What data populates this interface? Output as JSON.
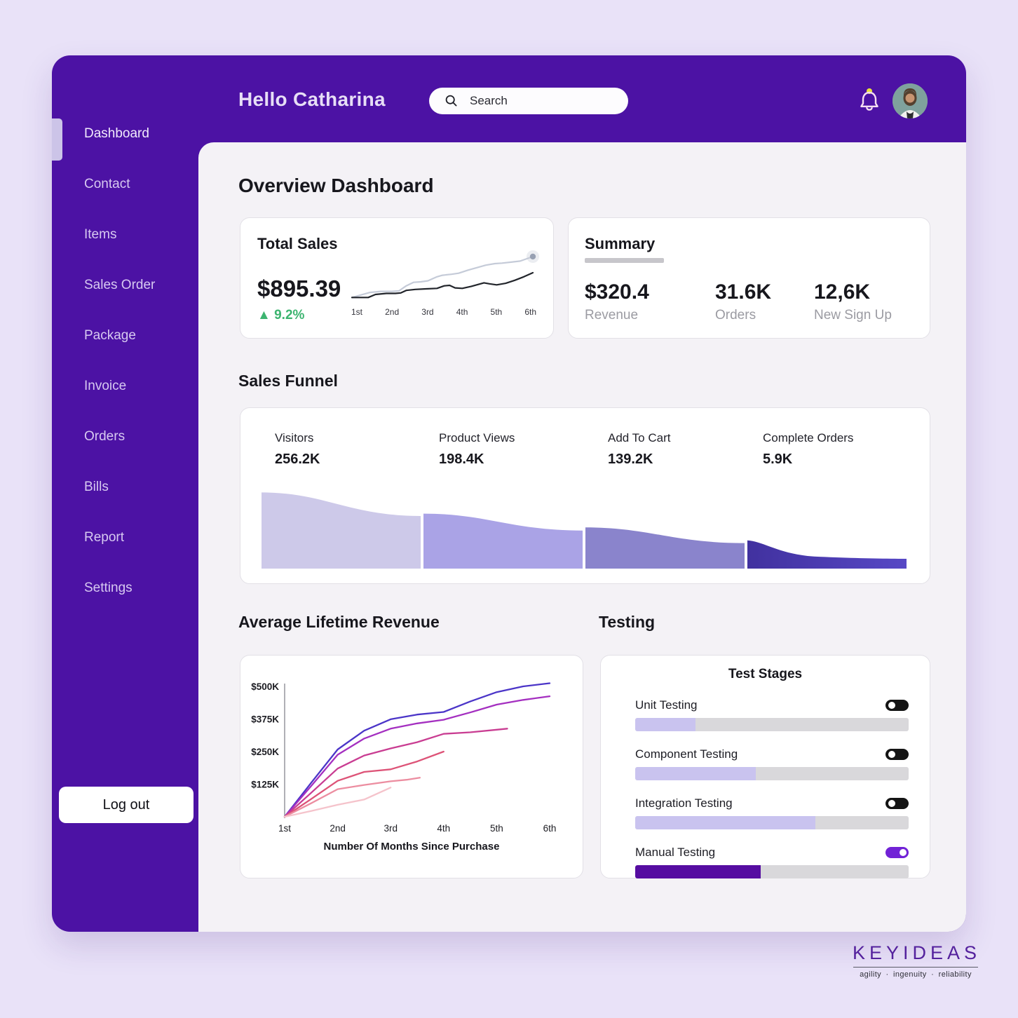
{
  "header": {
    "greeting": "Hello Catharina",
    "search_placeholder": "Search"
  },
  "sidebar": {
    "items": [
      {
        "label": "Dashboard",
        "active": true
      },
      {
        "label": "Contact",
        "active": false
      },
      {
        "label": "Items",
        "active": false
      },
      {
        "label": "Sales Order",
        "active": false
      },
      {
        "label": "Package",
        "active": false
      },
      {
        "label": "Invoice",
        "active": false
      },
      {
        "label": "Orders",
        "active": false
      },
      {
        "label": "Bills",
        "active": false
      },
      {
        "label": "Report",
        "active": false
      },
      {
        "label": "Settings",
        "active": false
      }
    ],
    "logout_label": "Log out"
  },
  "page_title": "Overview Dashboard",
  "total_sales": {
    "title": "Total Sales",
    "value": "$895.39",
    "change_arrow": "▲",
    "change": "9.2%",
    "change_color": "#3db470"
  },
  "summary": {
    "title": "Summary",
    "stats": [
      {
        "value": "$320.4",
        "label": "Revenue"
      },
      {
        "value": "31.6K",
        "label": "Orders"
      },
      {
        "value": "12,6K",
        "label": "New Sign Up"
      }
    ]
  },
  "sales_funnel": {
    "title": "Sales Funnel",
    "stages": [
      {
        "label": "Visitors",
        "value": "256.2K"
      },
      {
        "label": "Product Views",
        "value": "198.4K"
      },
      {
        "label": "Add To Cart",
        "value": "139.2K"
      },
      {
        "label": "Complete Orders",
        "value": "5.9K"
      }
    ]
  },
  "avg_revenue": {
    "title": "Average Lifetime Revenue"
  },
  "testing": {
    "title": "Testing",
    "card_title": "Test Stages",
    "stages": [
      {
        "label": "Unit Testing",
        "progress_pct": 22,
        "enabled": false,
        "bar_color": "#c9c3ef"
      },
      {
        "label": "Component Testing",
        "progress_pct": 44,
        "enabled": false,
        "bar_color": "#c9c3ef"
      },
      {
        "label": "Integration Testing",
        "progress_pct": 66,
        "enabled": false,
        "bar_color": "#c9c3ef"
      },
      {
        "label": "Manual Testing",
        "progress_pct": 46,
        "enabled": true,
        "bar_color": "#560da1"
      }
    ]
  },
  "footer": {
    "brand": "KEYIDEAS",
    "tagline": "agility · ingenuity · reliability"
  },
  "chart_data": [
    {
      "id": "total-sales-sparkline",
      "type": "line",
      "title": "Total Sales trend",
      "x_tick_labels": [
        "1st",
        "2nd",
        "3rd",
        "4th",
        "5th",
        "6th"
      ],
      "ylim": [
        0,
        100
      ],
      "series": [
        {
          "name": "current",
          "color": "#c5cbd8",
          "end_dot": true,
          "points": [
            [
              0,
              1
            ],
            [
              0.05,
              6
            ],
            [
              0.1,
              11
            ],
            [
              0.16,
              13
            ],
            [
              0.22,
              13
            ],
            [
              0.26,
              14
            ],
            [
              0.3,
              24
            ],
            [
              0.34,
              31
            ],
            [
              0.38,
              32
            ],
            [
              0.42,
              34
            ],
            [
              0.47,
              42
            ],
            [
              0.5,
              45
            ],
            [
              0.55,
              47
            ],
            [
              0.59,
              49
            ],
            [
              0.64,
              55
            ],
            [
              0.69,
              60
            ],
            [
              0.74,
              65
            ],
            [
              0.79,
              68
            ],
            [
              0.83,
              69
            ],
            [
              0.88,
              71
            ],
            [
              0.93,
              73
            ],
            [
              1,
              82
            ]
          ]
        },
        {
          "name": "previous",
          "color": "#22252b",
          "end_dot": false,
          "points": [
            [
              0,
              1
            ],
            [
              0.09,
              1
            ],
            [
              0.13,
              7
            ],
            [
              0.19,
              9
            ],
            [
              0.24,
              9
            ],
            [
              0.27,
              10
            ],
            [
              0.3,
              15
            ],
            [
              0.35,
              17
            ],
            [
              0.41,
              18
            ],
            [
              0.47,
              19
            ],
            [
              0.51,
              24
            ],
            [
              0.54,
              25
            ],
            [
              0.57,
              20
            ],
            [
              0.61,
              19
            ],
            [
              0.66,
              23
            ],
            [
              0.7,
              27
            ],
            [
              0.73,
              30
            ],
            [
              0.76,
              28
            ],
            [
              0.8,
              26
            ],
            [
              0.85,
              29
            ],
            [
              0.9,
              35
            ],
            [
              0.95,
              42
            ],
            [
              1,
              50
            ]
          ]
        }
      ]
    },
    {
      "id": "sales-funnel",
      "type": "area-funnel",
      "title": "Sales Funnel",
      "stages": [
        {
          "label": "Visitors",
          "value": 256200,
          "color": "#cdc9e9",
          "h_start": 0.97,
          "h_end": 0.67,
          "steep": false
        },
        {
          "label": "Product Views",
          "value": 198400,
          "color": "#aaa3e6",
          "h_start": 0.7,
          "h_end": 0.485,
          "steep": false
        },
        {
          "label": "Add To Cart",
          "value": 139200,
          "color": "#8a84cc",
          "h_start": 0.525,
          "h_end": 0.325,
          "steep": false
        },
        {
          "label": "Complete Orders",
          "value": 5900,
          "color": "#4a3ab5",
          "gradient": [
            "#41319f",
            "#5748c5"
          ],
          "h_start": 0.36,
          "h_end": 0.125,
          "steep": true
        }
      ]
    },
    {
      "id": "avg-lifetime-revenue",
      "type": "line",
      "title": "Average Lifetime Revenue",
      "xlabel": "Number Of Months Since Purchase",
      "unit": "$K",
      "ylim": [
        0,
        520
      ],
      "x_tick_labels": [
        "1st",
        "2nd",
        "3rd",
        "4th",
        "5th",
        "6th"
      ],
      "y_ticks": [
        {
          "label": "$500K",
          "value": 500
        },
        {
          "label": "$375K",
          "value": 375
        },
        {
          "label": "$250K",
          "value": 250
        },
        {
          "label": "$125K",
          "value": 125
        }
      ],
      "series": [
        {
          "name": "cohort-1",
          "color": "#4b35c8",
          "points": [
            [
              1,
              0
            ],
            [
              1.5,
              130
            ],
            [
              2,
              258
            ],
            [
              2.5,
              330
            ],
            [
              3,
              374
            ],
            [
              3.5,
              392
            ],
            [
              4,
              402
            ],
            [
              4.5,
              442
            ],
            [
              5,
              478
            ],
            [
              5.5,
              500
            ],
            [
              6,
              512
            ]
          ]
        },
        {
          "name": "cohort-2",
          "color": "#a42fc0",
          "points": [
            [
              1,
              0
            ],
            [
              1.5,
              118
            ],
            [
              2,
              238
            ],
            [
              2.5,
              300
            ],
            [
              3,
              338
            ],
            [
              3.5,
              358
            ],
            [
              4,
              372
            ],
            [
              4.5,
              400
            ],
            [
              5,
              430
            ],
            [
              5.5,
              448
            ],
            [
              6,
              462
            ]
          ]
        },
        {
          "name": "cohort-3",
          "color": "#c93d92",
          "points": [
            [
              1,
              0
            ],
            [
              1.5,
              92
            ],
            [
              2,
              185
            ],
            [
              2.5,
              235
            ],
            [
              3,
              262
            ],
            [
              3.5,
              286
            ],
            [
              4,
              318
            ],
            [
              4.5,
              324
            ],
            [
              5,
              334
            ],
            [
              5.2,
              338
            ]
          ]
        },
        {
          "name": "cohort-4",
          "color": "#dd5377",
          "points": [
            [
              1,
              0
            ],
            [
              1.5,
              68
            ],
            [
              2,
              138
            ],
            [
              2.5,
              172
            ],
            [
              3,
              182
            ],
            [
              3.5,
              212
            ],
            [
              4,
              250
            ]
          ]
        },
        {
          "name": "cohort-5",
          "color": "#ec8da0",
          "points": [
            [
              1,
              0
            ],
            [
              1.5,
              52
            ],
            [
              2,
              106
            ],
            [
              2.5,
              122
            ],
            [
              3,
              136
            ],
            [
              3.3,
              142
            ],
            [
              3.55,
              150
            ]
          ]
        },
        {
          "name": "cohort-6",
          "color": "#f5c3cb",
          "points": [
            [
              1,
              0
            ],
            [
              1.5,
              22
            ],
            [
              2,
              46
            ],
            [
              2.5,
              66
            ],
            [
              3,
              112
            ]
          ]
        }
      ]
    }
  ]
}
